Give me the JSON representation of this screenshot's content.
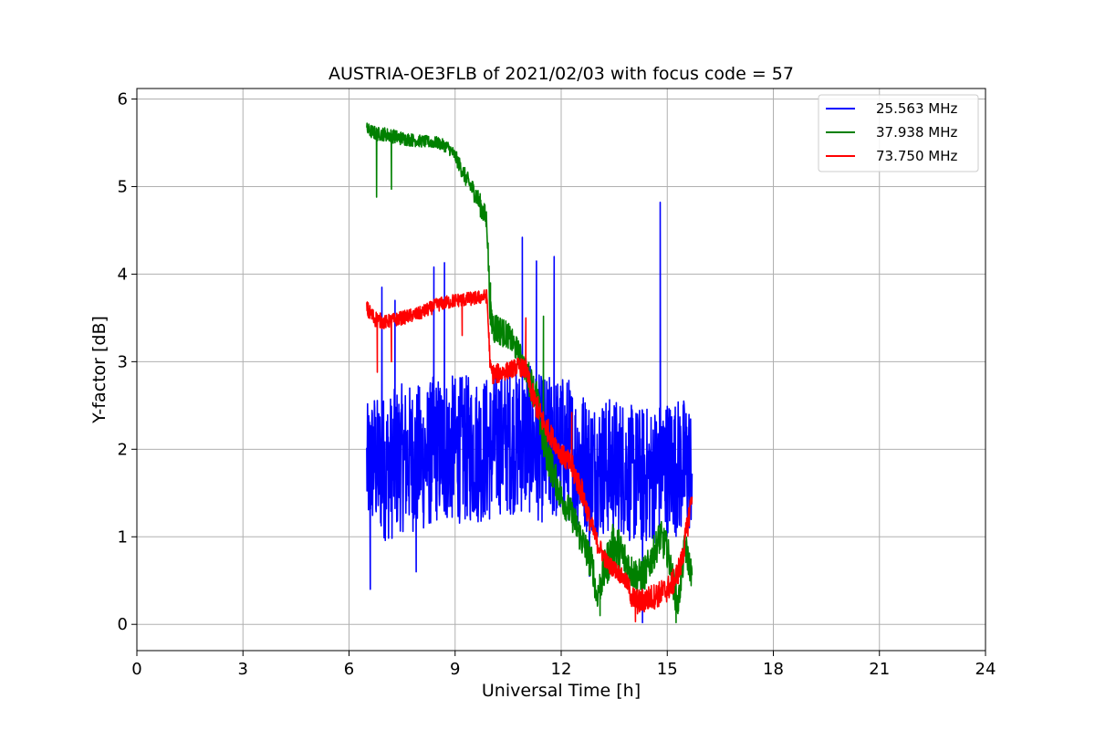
{
  "chart_data": {
    "type": "line",
    "title": "AUSTRIA-OE3FLB of 2021/02/03 with focus code = 57",
    "xlabel": "Universal Time [h]",
    "ylabel": "Y-factor [dB]",
    "xlim": [
      0,
      24
    ],
    "ylim": [
      -0.3,
      6.12
    ],
    "x_ticks": [
      0,
      3,
      6,
      9,
      12,
      15,
      18,
      21,
      24
    ],
    "y_ticks": [
      0,
      1,
      2,
      3,
      4,
      5,
      6
    ],
    "grid": true,
    "legend_position": "top-right",
    "series": [
      {
        "name": "25.563 MHz",
        "color": "#0000ff",
        "x": [
          6.5,
          6.6,
          6.7,
          6.8,
          7.0,
          7.2,
          7.4,
          7.6,
          7.8,
          8.0,
          8.2,
          8.4,
          8.6,
          8.8,
          9.0,
          9.2,
          9.4,
          9.6,
          9.8,
          10.0,
          10.2,
          10.4,
          10.6,
          10.8,
          11.0,
          11.2,
          11.4,
          11.6,
          11.8,
          12.0,
          12.2,
          12.4,
          12.6,
          12.8,
          13.0,
          13.2,
          13.4,
          13.6,
          13.8,
          14.0,
          14.2,
          14.4,
          14.6,
          14.8,
          15.0,
          15.2,
          15.4,
          15.6,
          15.7
        ],
        "center": [
          1.8,
          1.8,
          1.9,
          1.8,
          1.8,
          1.8,
          1.9,
          1.9,
          1.9,
          1.9,
          1.9,
          2.0,
          2.0,
          2.0,
          2.0,
          2.0,
          2.0,
          2.0,
          2.0,
          2.0,
          2.1,
          2.1,
          2.1,
          2.1,
          2.1,
          2.1,
          2.0,
          2.0,
          2.0,
          2.0,
          2.0,
          1.9,
          1.9,
          1.8,
          1.8,
          1.8,
          1.8,
          1.8,
          1.8,
          1.7,
          1.7,
          1.7,
          1.7,
          1.8,
          1.8,
          1.8,
          1.8,
          1.8,
          1.8
        ],
        "spread": [
          0.7,
          0.8,
          0.8,
          0.8,
          0.85,
          0.85,
          0.85,
          0.85,
          0.85,
          0.85,
          0.85,
          0.85,
          0.85,
          0.85,
          0.85,
          0.85,
          0.85,
          0.85,
          0.85,
          0.85,
          0.85,
          0.85,
          0.85,
          0.85,
          0.85,
          0.85,
          0.85,
          0.85,
          0.85,
          0.85,
          0.85,
          0.8,
          0.8,
          0.8,
          0.8,
          0.8,
          0.8,
          0.8,
          0.8,
          0.8,
          0.8,
          0.8,
          0.8,
          0.8,
          0.8,
          0.8,
          0.8,
          0.8,
          0.7
        ],
        "spikes": [
          [
            6.93,
            3.85
          ],
          [
            7.3,
            3.7
          ],
          [
            8.4,
            4.08
          ],
          [
            8.7,
            4.13
          ],
          [
            10.9,
            4.42
          ],
          [
            11.3,
            4.15
          ],
          [
            11.8,
            4.2
          ],
          [
            14.8,
            4.82
          ],
          [
            12.8,
            0.55
          ],
          [
            14.3,
            0.02
          ],
          [
            6.6,
            0.4
          ],
          [
            7.9,
            0.6
          ]
        ]
      },
      {
        "name": "37.938 MHz",
        "color": "#008000",
        "x": [
          6.5,
          6.8,
          7.0,
          7.5,
          8.0,
          8.5,
          8.8,
          9.0,
          9.3,
          9.6,
          9.9,
          10.0,
          10.1,
          10.5,
          10.8,
          11.0,
          11.1,
          11.3,
          11.5,
          11.8,
          12.0,
          12.3,
          12.6,
          12.9,
          13.0,
          13.1,
          13.3,
          13.5,
          13.7,
          14.0,
          14.2,
          14.4,
          14.6,
          14.8,
          15.0,
          15.2,
          15.3,
          15.5,
          15.7
        ],
        "center": [
          5.65,
          5.6,
          5.6,
          5.55,
          5.52,
          5.5,
          5.45,
          5.35,
          5.1,
          4.9,
          4.6,
          3.5,
          3.4,
          3.3,
          3.1,
          2.9,
          2.8,
          2.6,
          2.1,
          1.7,
          1.45,
          1.25,
          0.95,
          0.65,
          0.3,
          0.45,
          0.7,
          0.9,
          0.8,
          0.6,
          0.55,
          0.6,
          0.8,
          1.0,
          0.85,
          0.4,
          0.2,
          0.9,
          0.55
        ],
        "spread": [
          0.08,
          0.08,
          0.08,
          0.08,
          0.07,
          0.07,
          0.07,
          0.08,
          0.1,
          0.12,
          0.15,
          0.2,
          0.2,
          0.15,
          0.15,
          0.15,
          0.2,
          0.2,
          0.25,
          0.2,
          0.18,
          0.18,
          0.2,
          0.2,
          0.15,
          0.2,
          0.25,
          0.3,
          0.25,
          0.2,
          0.2,
          0.2,
          0.2,
          0.2,
          0.2,
          0.2,
          0.15,
          0.2,
          0.15
        ],
        "spikes": [
          [
            6.78,
            4.88
          ],
          [
            7.2,
            4.97
          ],
          [
            10.0,
            3.9
          ],
          [
            11.5,
            3.52
          ],
          [
            13.1,
            0.1
          ],
          [
            15.25,
            0.02
          ]
        ]
      },
      {
        "name": "73.750 MHz",
        "color": "#ff0000",
        "x": [
          6.5,
          6.7,
          7.0,
          7.5,
          8.0,
          8.5,
          9.0,
          9.5,
          9.9,
          10.0,
          10.1,
          10.5,
          10.8,
          11.0,
          11.2,
          11.5,
          11.8,
          12.0,
          12.3,
          12.6,
          12.8,
          13.0,
          13.3,
          13.6,
          13.9,
          14.0,
          14.2,
          14.5,
          14.8,
          15.0,
          15.2,
          15.4,
          15.6,
          15.7
        ],
        "center": [
          3.6,
          3.5,
          3.45,
          3.5,
          3.55,
          3.65,
          3.7,
          3.72,
          3.75,
          2.9,
          2.85,
          2.9,
          2.95,
          2.9,
          2.6,
          2.3,
          2.1,
          1.95,
          1.8,
          1.5,
          1.2,
          0.95,
          0.7,
          0.6,
          0.45,
          0.3,
          0.25,
          0.3,
          0.35,
          0.4,
          0.5,
          0.7,
          1.2,
          1.5
        ],
        "spread": [
          0.1,
          0.1,
          0.08,
          0.08,
          0.08,
          0.08,
          0.08,
          0.08,
          0.08,
          0.12,
          0.12,
          0.1,
          0.1,
          0.12,
          0.15,
          0.15,
          0.12,
          0.12,
          0.15,
          0.15,
          0.12,
          0.12,
          0.1,
          0.1,
          0.1,
          0.15,
          0.15,
          0.15,
          0.15,
          0.15,
          0.15,
          0.15,
          0.15,
          0.1
        ],
        "spikes": [
          [
            6.8,
            2.88
          ],
          [
            7.2,
            3.0
          ],
          [
            9.2,
            3.3
          ],
          [
            11.0,
            3.5
          ],
          [
            12.3,
            2.42
          ],
          [
            14.1,
            0.03
          ]
        ]
      }
    ]
  }
}
